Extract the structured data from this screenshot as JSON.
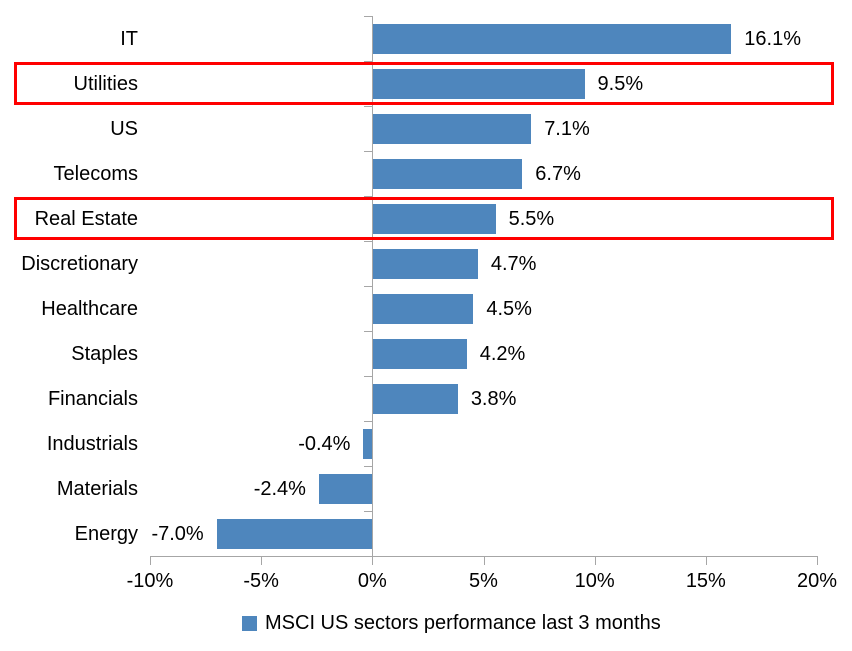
{
  "chart_data": {
    "type": "bar",
    "orientation": "horizontal",
    "categories": [
      "IT",
      "Utilities",
      "US",
      "Telecoms",
      "Real Estate",
      "Discretionary",
      "Healthcare",
      "Staples",
      "Financials",
      "Industrials",
      "Materials",
      "Energy"
    ],
    "values": [
      16.1,
      9.5,
      7.1,
      6.7,
      5.5,
      4.7,
      4.5,
      4.2,
      3.8,
      -0.4,
      -2.4,
      -7.0
    ],
    "data_labels": [
      "16.1%",
      "9.5%",
      "7.1%",
      "6.7%",
      "5.5%",
      "4.7%",
      "4.5%",
      "4.2%",
      "3.8%",
      "-0.4%",
      "-2.4%",
      "-7.0%"
    ],
    "x_axis": {
      "tick_values": [
        -10,
        -5,
        0,
        5,
        10,
        15,
        20
      ],
      "tick_labels": [
        "-10%",
        "-5%",
        "0%",
        "5%",
        "10%",
        "15%",
        "20%"
      ],
      "range": [
        -10,
        20
      ]
    },
    "legend": {
      "label": "MSCI US sectors performance last 3 months",
      "position": "bottom"
    },
    "highlighted_categories": [
      "Utilities",
      "Real Estate"
    ],
    "colors": {
      "bar": "#4e86bd",
      "axis": "#a6a6a6",
      "highlight_box": "#ff0000",
      "text": "#000000",
      "background": "#ffffff"
    },
    "grid": false
  }
}
